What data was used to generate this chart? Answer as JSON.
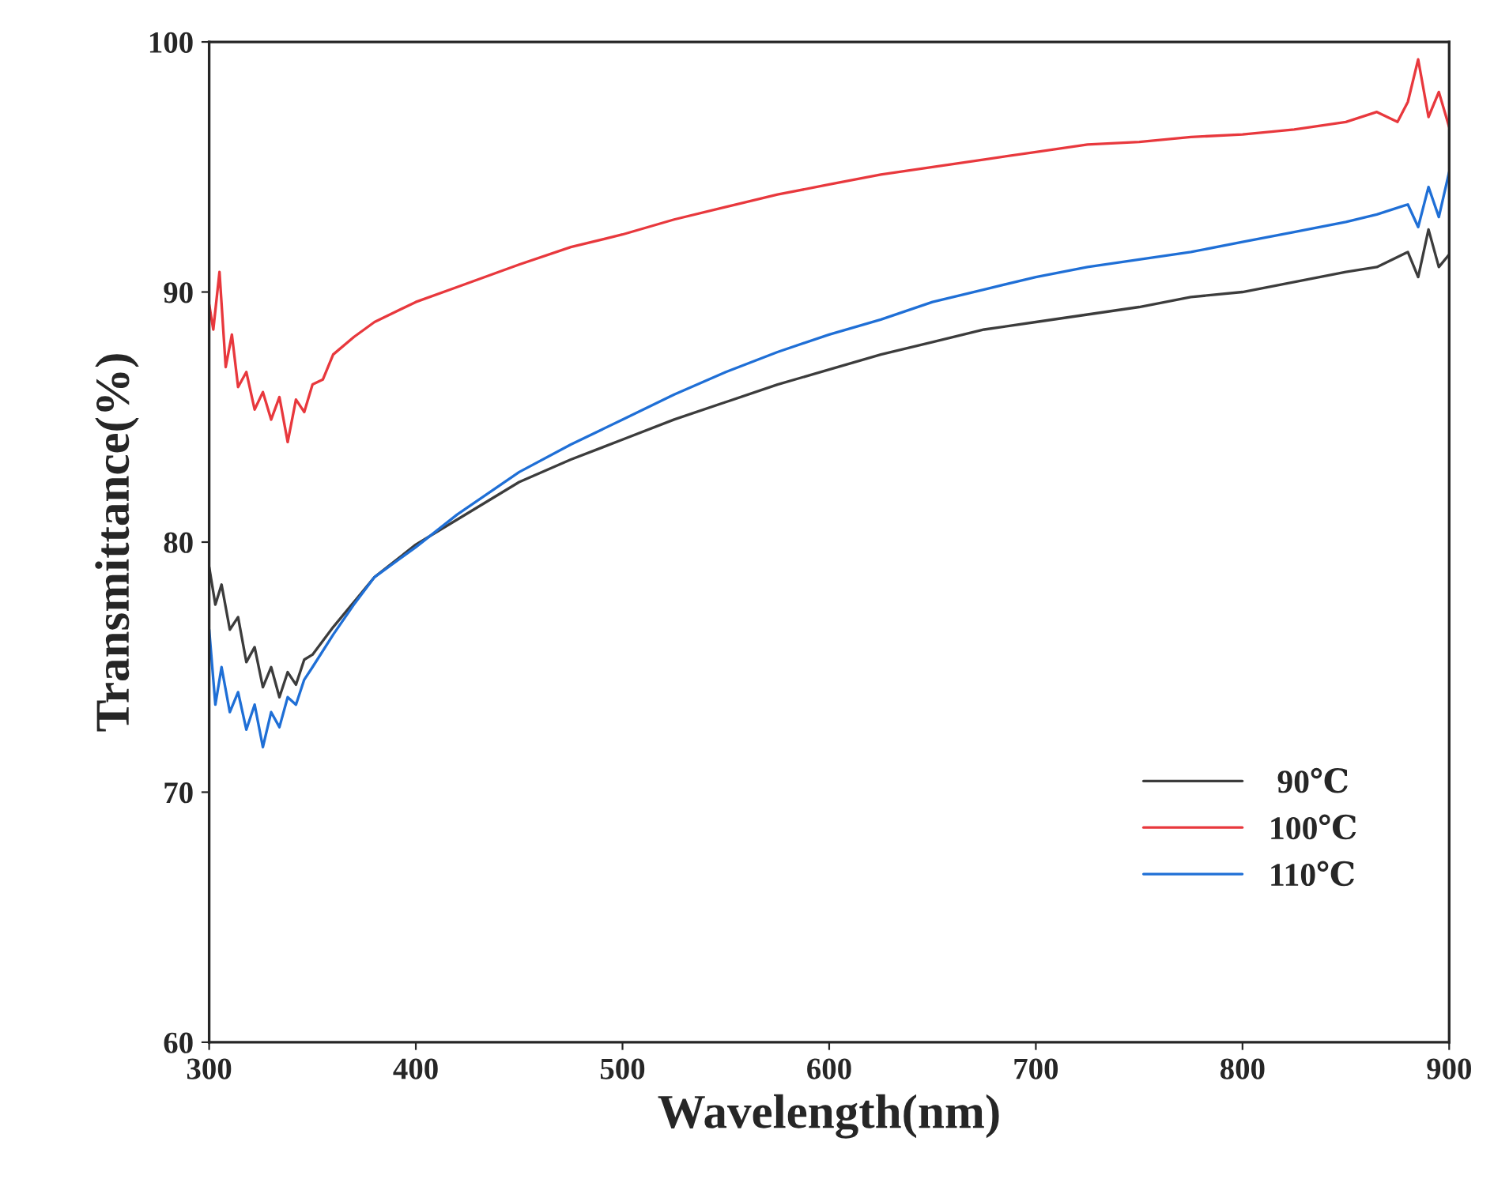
{
  "chart_data": {
    "type": "line",
    "xlabel": "Wavelength(nm)",
    "ylabel": "Transmittance(%)",
    "xlim": [
      300,
      900
    ],
    "xticks": [
      300,
      400,
      500,
      600,
      700,
      800,
      900
    ],
    "ylim": [
      60,
      100
    ],
    "yticks": [
      60,
      70,
      80,
      90,
      100
    ],
    "grid": false,
    "legend": "bottom right",
    "marker": "none",
    "line_style": "solid",
    "series": [
      {
        "name": " 90℃",
        "color": "#3c3c3c",
        "x": [
          300,
          303,
          306,
          310,
          314,
          318,
          322,
          326,
          330,
          334,
          338,
          342,
          346,
          350,
          360,
          370,
          380,
          400,
          420,
          450,
          475,
          500,
          525,
          550,
          575,
          600,
          625,
          650,
          675,
          700,
          725,
          750,
          775,
          800,
          825,
          850,
          865,
          880,
          885,
          890,
          895,
          900
        ],
        "values": [
          79,
          77.5,
          78.3,
          76.5,
          77,
          75.2,
          75.8,
          74.2,
          75,
          73.8,
          74.8,
          74.3,
          75.3,
          75.5,
          76.6,
          77.6,
          78.6,
          79.9,
          80.9,
          82.4,
          83.3,
          84.1,
          84.9,
          85.6,
          86.3,
          86.9,
          87.5,
          88,
          88.5,
          88.8,
          89.1,
          89.4,
          89.8,
          90,
          90.4,
          90.8,
          91,
          91.6,
          90.6,
          92.5,
          91,
          91.5
        ]
      },
      {
        "name": "100℃",
        "color": "#e8383d",
        "x": [
          300,
          302,
          305,
          308,
          311,
          314,
          318,
          322,
          326,
          330,
          334,
          338,
          342,
          346,
          350,
          355,
          360,
          370,
          380,
          400,
          420,
          450,
          475,
          500,
          525,
          550,
          575,
          600,
          625,
          650,
          675,
          700,
          725,
          750,
          775,
          800,
          825,
          850,
          865,
          875,
          880,
          885,
          890,
          895,
          900
        ],
        "values": [
          89.5,
          88.5,
          90.8,
          87,
          88.3,
          86.2,
          86.8,
          85.3,
          86,
          84.9,
          85.8,
          84,
          85.7,
          85.2,
          86.3,
          86.5,
          87.5,
          88.2,
          88.8,
          89.6,
          90.2,
          91.1,
          91.8,
          92.3,
          92.9,
          93.4,
          93.9,
          94.3,
          94.7,
          95,
          95.3,
          95.6,
          95.9,
          96,
          96.2,
          96.3,
          96.5,
          96.8,
          97.2,
          96.8,
          97.6,
          99.3,
          97,
          98,
          96.6
        ]
      },
      {
        "name": "110℃",
        "color": "#1f6fd6",
        "x": [
          300,
          303,
          306,
          310,
          314,
          318,
          322,
          326,
          330,
          334,
          338,
          342,
          346,
          350,
          360,
          370,
          380,
          400,
          420,
          450,
          475,
          500,
          525,
          550,
          575,
          600,
          625,
          650,
          675,
          700,
          725,
          750,
          775,
          800,
          825,
          850,
          865,
          880,
          885,
          890,
          895,
          900
        ],
        "values": [
          76.5,
          73.5,
          75,
          73.2,
          74,
          72.5,
          73.5,
          71.8,
          73.2,
          72.6,
          73.8,
          73.5,
          74.5,
          75,
          76.3,
          77.5,
          78.6,
          79.8,
          81.1,
          82.8,
          83.9,
          84.9,
          85.9,
          86.8,
          87.6,
          88.3,
          88.9,
          89.6,
          90.1,
          90.6,
          91,
          91.3,
          91.6,
          92,
          92.4,
          92.8,
          93.1,
          93.5,
          92.6,
          94.2,
          93,
          94.8
        ]
      }
    ]
  }
}
